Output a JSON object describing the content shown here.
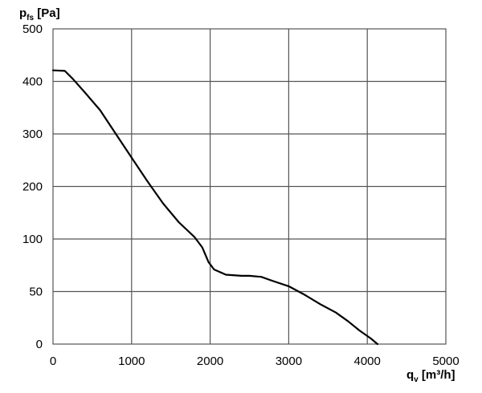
{
  "chart_data": {
    "type": "line",
    "ylabel_main": "p",
    "ylabel_sub": "fs",
    "ylabel_unit": " [Pa]",
    "xlabel_main": "q",
    "xlabel_sub": "v",
    "xlabel_unit": " [m³/h]",
    "xlim": [
      0,
      5000
    ],
    "x_ticks": [
      "0",
      "1000",
      "2000",
      "3000",
      "4000",
      "5000"
    ],
    "y_ticks": [
      "0",
      "50",
      "100",
      "200",
      "300",
      "400",
      "500"
    ],
    "y_scale": "piecewise: 0–100 in steps of 50, then 100–500 in steps of 100 (equal spacing per tick)",
    "grid": true,
    "series": [
      {
        "color": "#000000",
        "x": [
          0,
          150,
          250,
          400,
          600,
          800,
          1000,
          1200,
          1400,
          1600,
          1800,
          1900,
          1980,
          2050,
          2200,
          2400,
          2500,
          2650,
          2800,
          3000,
          3200,
          3400,
          3600,
          3750,
          3900,
          4050,
          4130
        ],
        "y": [
          421,
          420,
          405,
          380,
          345,
          300,
          255,
          210,
          168,
          132,
          104,
          92,
          78,
          71,
          66,
          65,
          65,
          64,
          60,
          55,
          47,
          38,
          30,
          22,
          13,
          5,
          0
        ]
      }
    ]
  }
}
